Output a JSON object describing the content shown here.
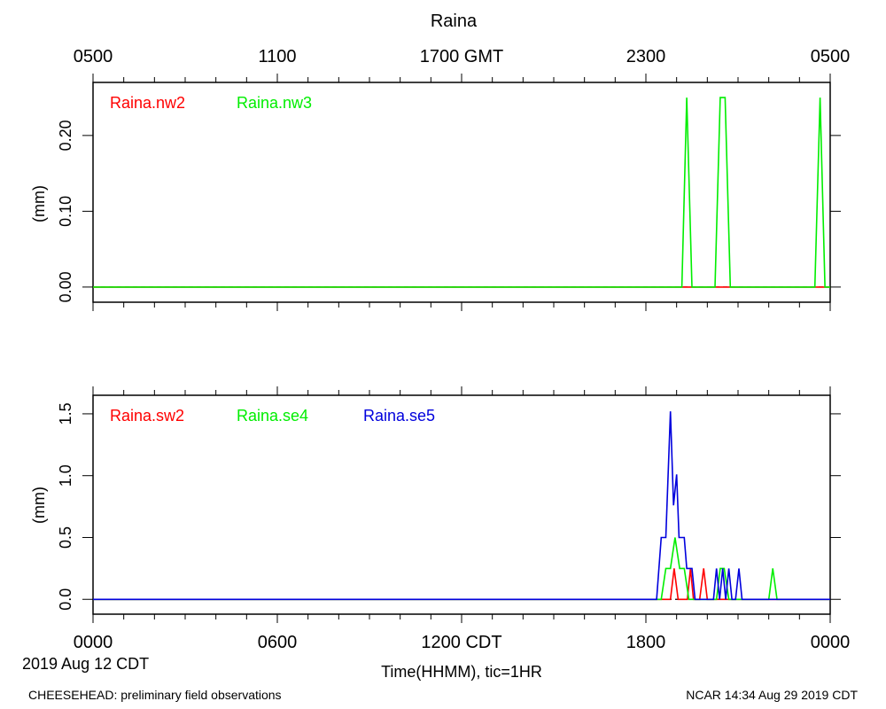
{
  "title": "Raina",
  "gmt_axis": {
    "labels": [
      "0500",
      "1100",
      "1700 GMT",
      "2300",
      "0500"
    ]
  },
  "cdt_axis": {
    "labels": [
      "0000",
      "0600",
      "1200 CDT",
      "1800",
      "0000"
    ],
    "date_label": "2019 Aug 12 CDT",
    "xlabel": "Time(HHMM), tic=1HR"
  },
  "footer": {
    "left": "CHEESEHEAD: preliminary field observations",
    "right": "NCAR 14:34 Aug 29 2019 CDT"
  },
  "colors": {
    "red": "#ff0000",
    "green": "#00ee00",
    "blue": "#0000dd",
    "axis": "#000000"
  },
  "chart_data": [
    {
      "type": "line",
      "ylabel": "(mm)",
      "ylim": [
        -0.02,
        0.27
      ],
      "yticks": [
        0.0,
        0.1,
        0.2
      ],
      "ytick_labels": [
        "0.00",
        "0.10",
        "0.20"
      ],
      "x_unit": "hours since 0000 CDT 2019 Aug 12",
      "xlim": [
        0,
        24
      ],
      "series": [
        {
          "name": "Raina.nw2",
          "color": "#ff0000",
          "points": [
            [
              0,
              0
            ],
            [
              24,
              0
            ]
          ]
        },
        {
          "name": "Raina.nw3",
          "color": "#00ee00",
          "points": [
            [
              0,
              0
            ],
            [
              19.17,
              0
            ],
            [
              19.33,
              0.25
            ],
            [
              19.5,
              0
            ],
            [
              20.25,
              0
            ],
            [
              20.42,
              0.25
            ],
            [
              20.58,
              0.25
            ],
            [
              20.75,
              0
            ],
            [
              23.5,
              0
            ],
            [
              23.67,
              0.25
            ],
            [
              23.83,
              0
            ],
            [
              24,
              0
            ]
          ]
        }
      ]
    },
    {
      "type": "line",
      "ylabel": "(mm)",
      "ylim": [
        -0.12,
        1.65
      ],
      "yticks": [
        0.0,
        0.5,
        1.0,
        1.5
      ],
      "ytick_labels": [
        "0.0",
        "0.5",
        "1.0",
        "1.5"
      ],
      "x_unit": "hours since 0000 CDT 2019 Aug 12",
      "xlim": [
        0,
        24
      ],
      "series": [
        {
          "name": "Raina.sw2",
          "color": "#ff0000",
          "points": [
            [
              0,
              0
            ],
            [
              18.8,
              0
            ],
            [
              18.92,
              0.25
            ],
            [
              19.05,
              0
            ],
            [
              19.35,
              0
            ],
            [
              19.45,
              0.25
            ],
            [
              19.55,
              0
            ],
            [
              19.75,
              0
            ],
            [
              19.88,
              0.25
            ],
            [
              20.0,
              0
            ],
            [
              24,
              0
            ]
          ]
        },
        {
          "name": "Raina.se4",
          "color": "#00ee00",
          "points": [
            [
              0,
              0
            ],
            [
              18.5,
              0
            ],
            [
              18.65,
              0.25
            ],
            [
              18.8,
              0.25
            ],
            [
              18.95,
              0.5
            ],
            [
              19.1,
              0.25
            ],
            [
              19.25,
              0.25
            ],
            [
              19.4,
              0
            ],
            [
              20.3,
              0
            ],
            [
              20.42,
              0.25
            ],
            [
              20.55,
              0.25
            ],
            [
              20.7,
              0
            ],
            [
              22.0,
              0
            ],
            [
              22.13,
              0.25
            ],
            [
              22.27,
              0
            ],
            [
              24,
              0
            ]
          ]
        },
        {
          "name": "Raina.se5",
          "color": "#0000dd",
          "points": [
            [
              0,
              0
            ],
            [
              18.35,
              0
            ],
            [
              18.5,
              0.5
            ],
            [
              18.65,
              0.5
            ],
            [
              18.8,
              1.52
            ],
            [
              18.9,
              0.76
            ],
            [
              19.0,
              1.01
            ],
            [
              19.08,
              0.5
            ],
            [
              19.25,
              0.5
            ],
            [
              19.33,
              0.25
            ],
            [
              19.5,
              0.25
            ],
            [
              19.6,
              0
            ],
            [
              20.2,
              0
            ],
            [
              20.3,
              0.25
            ],
            [
              20.4,
              0
            ],
            [
              20.5,
              0.25
            ],
            [
              20.6,
              0
            ],
            [
              20.7,
              0.25
            ],
            [
              20.8,
              0
            ],
            [
              20.92,
              0
            ],
            [
              21.03,
              0.25
            ],
            [
              21.13,
              0
            ],
            [
              24,
              0
            ]
          ]
        }
      ]
    }
  ]
}
